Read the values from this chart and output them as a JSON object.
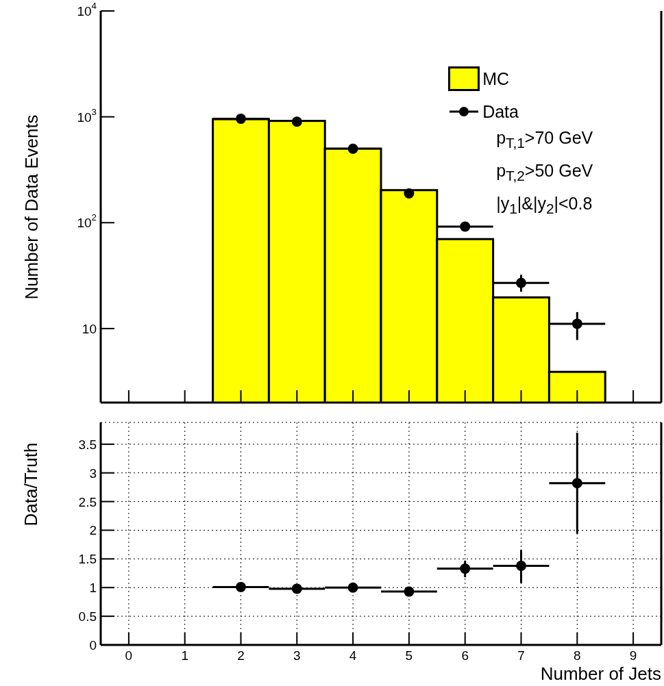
{
  "chart_data": [
    {
      "type": "histogram",
      "ylabel": "Number of Data Events",
      "bins": [
        1.5,
        2.5,
        3.5,
        4.5,
        5.5,
        6.5,
        7.5,
        8.5
      ],
      "xlim": [
        -0.5,
        9.5
      ],
      "xticks": [
        0,
        1,
        2,
        3,
        4,
        5,
        6,
        7,
        8,
        9
      ],
      "ylim": [
        2,
        10000
      ],
      "yticks": [
        {
          "value": 10,
          "label": "10"
        },
        {
          "value": 100,
          "label": "10$^{2}$"
        },
        {
          "value": 1000,
          "label": "10$^{3}$"
        },
        {
          "value": 10000,
          "label": "10$^{4}$"
        }
      ],
      "log": "y",
      "tick_labels": "y",
      "legend": "top right",
      "marker": "circle",
      "annotations": [
        "p$_{T,1}$>70 GeV",
        "p$_{T,2}$>50 GeV",
        "|y$_{1}$|&|y$_{2}$|<0.8"
      ],
      "series": [
        {
          "name": "MC",
          "color": "#ffff00",
          "values": [
            950,
            915,
            500,
            203,
            70,
            19.7,
            3.9
          ]
        },
        {
          "name": "Data",
          "type": "scatter",
          "color": "#000000",
          "x": [
            2,
            3,
            4,
            5,
            6,
            7,
            8
          ],
          "values": [
            960,
            900,
            500,
            189,
            92,
            27,
            11.1
          ],
          "errors": [
            null,
            null,
            null,
            null,
            null,
            [
              22.3,
              32.2
            ],
            [
              7.8,
              14.3
            ]
          ],
          "xerrors": [
            0.5,
            0.5,
            0.5,
            0.5,
            0.5,
            0.5,
            0.5
          ]
        }
      ]
    },
    {
      "type": "scatter",
      "xlabel": "Number of Jets",
      "ylabel": "Data/Truth",
      "xlim": [
        -0.5,
        9.5
      ],
      "xticks": [
        0,
        1,
        2,
        3,
        4,
        5,
        6,
        7,
        8,
        9
      ],
      "ylim": [
        0,
        3.88
      ],
      "yticks": [
        0,
        0.5,
        1,
        1.5,
        2,
        2.5,
        3,
        3.5
      ],
      "grid": true,
      "marker": "circle",
      "series": [
        {
          "color": "#000000",
          "x": [
            2,
            3,
            4,
            5,
            6,
            7,
            8
          ],
          "values": [
            1.01,
            0.98,
            1.0,
            0.93,
            1.33,
            1.38,
            2.82
          ],
          "errors": [
            null,
            null,
            null,
            null,
            [
              1.18,
              1.47
            ],
            [
              1.08,
              1.66
            ],
            [
              1.94,
              3.7
            ]
          ],
          "xerrors": [
            0.5,
            0.5,
            0.5,
            0.5,
            0.5,
            0.5,
            0.5
          ]
        }
      ]
    }
  ]
}
